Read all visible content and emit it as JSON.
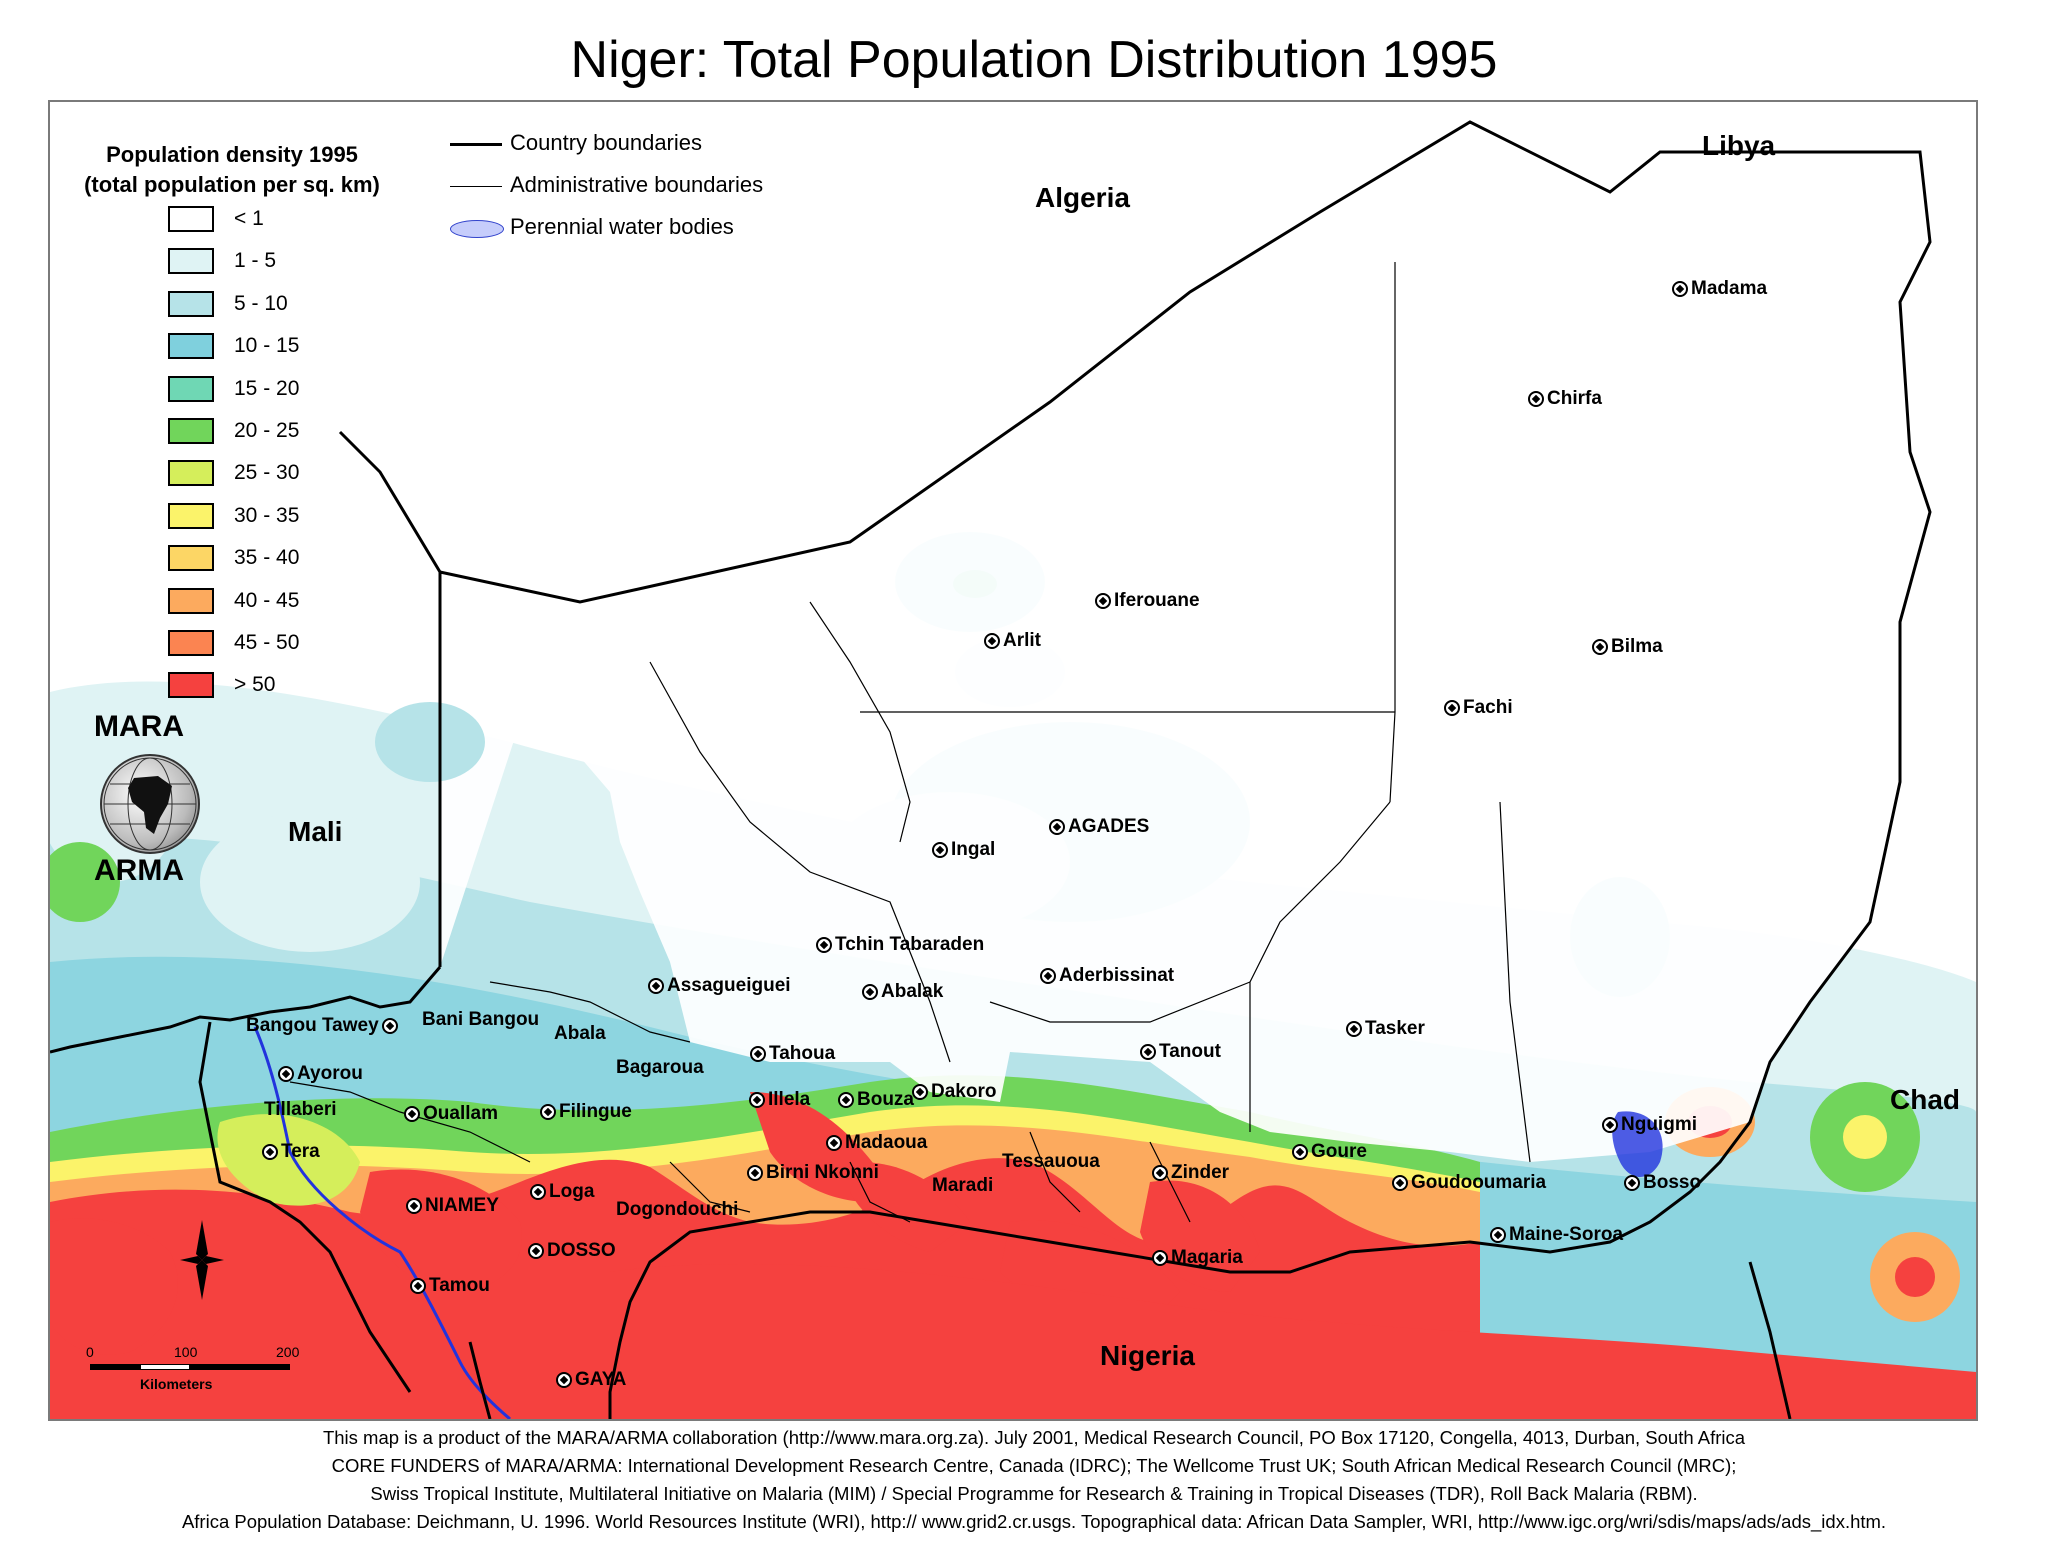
{
  "title": "Niger: Total Population Distribution 1995",
  "legend": {
    "title_line1": "Population density 1995",
    "title_line2": "(total population per sq. km)",
    "classes": [
      {
        "label": "< 1",
        "color": "#ffffff"
      },
      {
        "label": "1 - 5",
        "color": "#dff3f4"
      },
      {
        "label": "5 - 10",
        "color": "#b6e3e8"
      },
      {
        "label": "10 - 15",
        "color": "#7fd0dd"
      },
      {
        "label": "15 - 20",
        "color": "#6fd7b4"
      },
      {
        "label": "20 - 25",
        "color": "#71d55b"
      },
      {
        "label": "25 - 30",
        "color": "#d5ee5b"
      },
      {
        "label": "30 - 35",
        "color": "#fbf36a"
      },
      {
        "label": "35 - 40",
        "color": "#fcd665"
      },
      {
        "label": "40 - 45",
        "color": "#fcaa5e"
      },
      {
        "label": "45 - 50",
        "color": "#fb8451"
      },
      {
        "label": "> 50",
        "color": "#f5413f"
      }
    ],
    "country_boundaries": "Country boundaries",
    "admin_boundaries": "Administrative boundaries",
    "water_bodies": "Perennial water bodies",
    "water_color": "#c6cdfb"
  },
  "countries": {
    "algeria": "Algeria",
    "libya": "Libya",
    "mali": "Mali",
    "chad": "Chad",
    "nigeria": "Nigeria"
  },
  "places": {
    "madama": "Madama",
    "chirfa": "Chirfa",
    "iferouane": "Iferouane",
    "arlit": "Arlit",
    "bilma": "Bilma",
    "fachi": "Fachi",
    "agades": "AGADES",
    "ingal": "Ingal",
    "tchin_tabaraden": "Tchin Tabaraden",
    "aderbissinat": "Aderbissinat",
    "assagueiguei": "Assagueiguei",
    "abalak": "Abalak",
    "tasker": "Tasker",
    "bangou_tawey": "Bangou Tawey",
    "bani_bangou": "Bani Bangou",
    "abala": "Abala",
    "tahoua": "Tahoua",
    "tanout": "Tanout",
    "ayorou": "Ayorou",
    "bagaroua": "Bagaroua",
    "dakoro": "Dakoro",
    "illela": "Illela",
    "bouza": "Bouza",
    "tillaberi": "Tillaberi",
    "ouallam": "Ouallam",
    "filingue": "Filingue",
    "nguigmi": "Nguigmi",
    "tera": "Tera",
    "madaoua": "Madaoua",
    "goure": "Goure",
    "tessaouua": "Tessauoua",
    "birni_nkonni": "Birni Nkonni",
    "zinder": "Zinder",
    "maradi": "Maradi",
    "goudoumaria": "Goudooumaria",
    "bosso": "Bosso",
    "niamey": "NIAMEY",
    "loga": "Loga",
    "dogondouchi": "Dogondouchi",
    "dosso": "DOSSO",
    "maine_soroa": "Maine-Soroa",
    "magaria": "Magaria",
    "tamou": "Tamou",
    "gaya": "GAYA"
  },
  "logo": {
    "top": "MARA",
    "bottom": "ARMA"
  },
  "scale": {
    "ticks": [
      "0",
      "100",
      "200"
    ],
    "unit": "Kilometers"
  },
  "credits": [
    "This map is a product of the MARA/ARMA collaboration (http://www.mara.org.za).  July 2001, Medical Research Council, PO Box 17120, Congella, 4013, Durban, South Africa",
    "CORE FUNDERS of MARA/ARMA: International Development Research Centre, Canada (IDRC); The Wellcome Trust UK; South African Medical Research Council (MRC);",
    "Swiss Tropical Institute, Multilateral Initiative on Malaria (MIM) / Special Programme for Research & Training in Tropical Diseases (TDR), Roll Back Malaria (RBM).",
    "Africa Population Database: Deichmann, U. 1996. World Resources Institute (WRI), http:// www.grid2.cr.usgs.     Topographical data: African Data Sampler, WRI, http://www.igc.org/wri/sdis/maps/ads/ads_idx.htm."
  ]
}
